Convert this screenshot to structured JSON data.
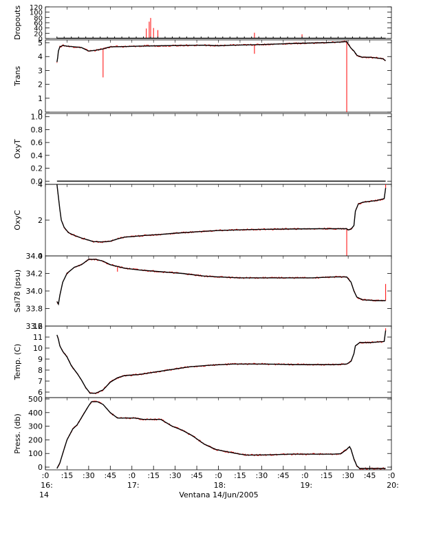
{
  "chart_data": {
    "type": "line",
    "xlabel": "Ventana 14/Jun/2005",
    "x_range": [
      "16:00",
      "20:00"
    ],
    "x_ticks": [
      {
        "t": 0,
        "label": ":0"
      },
      {
        "t": 15,
        "label": ":15"
      },
      {
        "t": 30,
        "label": ":30"
      },
      {
        "t": 45,
        "label": ":45"
      },
      {
        "t": 60,
        "label": ":0"
      },
      {
        "t": 75,
        "label": ":15"
      },
      {
        "t": 90,
        "label": ":30"
      },
      {
        "t": 105,
        "label": ":45"
      },
      {
        "t": 120,
        "label": ":0"
      },
      {
        "t": 135,
        "label": ":15"
      },
      {
        "t": 150,
        "label": ":30"
      },
      {
        "t": 165,
        "label": ":45"
      },
      {
        "t": 180,
        "label": ":0"
      },
      {
        "t": 195,
        "label": ":15"
      },
      {
        "t": 210,
        "label": ":30"
      },
      {
        "t": 225,
        "label": ":45"
      },
      {
        "t": 240,
        "label": ":0"
      }
    ],
    "hour_labels": [
      {
        "t": 0,
        "label": "16:"
      },
      {
        "t": 60,
        "label": "17:"
      },
      {
        "t": 120,
        "label": "18:"
      },
      {
        "t": 180,
        "label": "19:"
      },
      {
        "t": 240,
        "label": "20:"
      }
    ],
    "day_label": "14",
    "series_colors": {
      "raw": "#ff0000",
      "smoothed": "#000000"
    },
    "panels": [
      {
        "id": "dropouts",
        "ylabel": "Dropouts",
        "ylim": [
          0,
          120
        ],
        "yticks": [
          0,
          20,
          40,
          60,
          80,
          100,
          120
        ],
        "baseline": 1,
        "points": [
          [
            8,
            1
          ],
          [
            236,
            1
          ]
        ],
        "spikes": [
          [
            70,
            38
          ],
          [
            72,
            64
          ],
          [
            73,
            78
          ],
          [
            75,
            40
          ],
          [
            78,
            32
          ],
          [
            145,
            22
          ],
          [
            178,
            16
          ]
        ]
      },
      {
        "id": "trans",
        "ylabel": "Trans",
        "ylim": [
          0,
          5.2
        ],
        "yticks": [
          0,
          1,
          2,
          3,
          4,
          5
        ],
        "points": [
          [
            8,
            3.6
          ],
          [
            8.5,
            3.9
          ],
          [
            9,
            4.4
          ],
          [
            10,
            4.7
          ],
          [
            12,
            4.8
          ],
          [
            15,
            4.75
          ],
          [
            20,
            4.7
          ],
          [
            25,
            4.65
          ],
          [
            30,
            4.4
          ],
          [
            35,
            4.45
          ],
          [
            40,
            4.55
          ],
          [
            45,
            4.7
          ],
          [
            55,
            4.72
          ],
          [
            65,
            4.75
          ],
          [
            80,
            4.78
          ],
          [
            95,
            4.8
          ],
          [
            110,
            4.82
          ],
          [
            120,
            4.78
          ],
          [
            130,
            4.82
          ],
          [
            145,
            4.85
          ],
          [
            160,
            4.9
          ],
          [
            175,
            4.95
          ],
          [
            195,
            5.0
          ],
          [
            205,
            5.05
          ],
          [
            209,
            5.08
          ],
          [
            210,
            4.9
          ],
          [
            212,
            4.6
          ],
          [
            214,
            4.4
          ],
          [
            216,
            4.1
          ],
          [
            218,
            4.0
          ],
          [
            220,
            3.95
          ],
          [
            225,
            3.95
          ],
          [
            230,
            3.9
          ],
          [
            234,
            3.85
          ],
          [
            236,
            3.7
          ]
        ],
        "spikes": [
          [
            40,
            2.5
          ],
          [
            209,
            0
          ],
          [
            145,
            4.2
          ]
        ]
      },
      {
        "id": "oxyt",
        "ylabel": "OxyT",
        "ylim": [
          -0.05,
          1.05
        ],
        "yticks": [
          0.0,
          0.2,
          0.4,
          0.6,
          0.8,
          1.0
        ],
        "tick_labels": [
          "0.0",
          "0.2",
          "0.4",
          "0.6",
          "0.8",
          "1.0"
        ],
        "points": [
          [
            8,
            0.0
          ],
          [
            236,
            0.0
          ]
        ],
        "spikes": []
      },
      {
        "id": "oxyc",
        "ylabel": "OxyC",
        "ylim": [
          0,
          4
        ],
        "yticks": [
          0,
          2,
          4
        ],
        "points": [
          [
            8,
            4.0
          ],
          [
            9,
            3.3
          ],
          [
            10,
            2.6
          ],
          [
            11,
            2.0
          ],
          [
            13,
            1.6
          ],
          [
            16,
            1.3
          ],
          [
            20,
            1.15
          ],
          [
            25,
            1.0
          ],
          [
            30,
            0.88
          ],
          [
            33,
            0.8
          ],
          [
            40,
            0.78
          ],
          [
            45,
            0.82
          ],
          [
            50,
            0.95
          ],
          [
            55,
            1.05
          ],
          [
            60,
            1.08
          ],
          [
            70,
            1.15
          ],
          [
            80,
            1.2
          ],
          [
            90,
            1.27
          ],
          [
            105,
            1.35
          ],
          [
            120,
            1.42
          ],
          [
            140,
            1.47
          ],
          [
            165,
            1.5
          ],
          [
            190,
            1.52
          ],
          [
            209,
            1.52
          ],
          [
            210,
            1.45
          ],
          [
            212,
            1.5
          ],
          [
            214,
            1.7
          ],
          [
            215,
            2.5
          ],
          [
            217,
            2.9
          ],
          [
            220,
            3.0
          ],
          [
            225,
            3.05
          ],
          [
            230,
            3.1
          ],
          [
            235,
            3.2
          ],
          [
            236,
            3.8
          ]
        ],
        "spikes": [
          [
            209,
            0
          ],
          [
            236,
            4.0
          ]
        ]
      },
      {
        "id": "sal",
        "ylabel": "Sal78 (psu)",
        "ylim": [
          33.6,
          34.4
        ],
        "yticks": [
          33.6,
          33.8,
          34.0,
          34.2,
          34.4
        ],
        "tick_labels": [
          "33.6",
          "33.8",
          "34.0",
          "34.2",
          "34.4"
        ],
        "points": [
          [
            8,
            33.88
          ],
          [
            9,
            33.85
          ],
          [
            10,
            33.95
          ],
          [
            12,
            34.1
          ],
          [
            15,
            34.2
          ],
          [
            20,
            34.27
          ],
          [
            25,
            34.3
          ],
          [
            30,
            34.36
          ],
          [
            35,
            34.36
          ],
          [
            40,
            34.34
          ],
          [
            45,
            34.3
          ],
          [
            55,
            34.26
          ],
          [
            65,
            34.24
          ],
          [
            80,
            34.22
          ],
          [
            95,
            34.2
          ],
          [
            110,
            34.17
          ],
          [
            120,
            34.16
          ],
          [
            135,
            34.15
          ],
          [
            160,
            34.15
          ],
          [
            185,
            34.15
          ],
          [
            200,
            34.16
          ],
          [
            209,
            34.16
          ],
          [
            212,
            34.1
          ],
          [
            214,
            34.0
          ],
          [
            216,
            33.93
          ],
          [
            220,
            33.9
          ],
          [
            230,
            33.89
          ],
          [
            236,
            33.89
          ]
        ],
        "spikes": [
          [
            236,
            34.08
          ],
          [
            50,
            34.22
          ]
        ]
      },
      {
        "id": "temp",
        "ylabel": "Temp. (C)",
        "ylim": [
          5.5,
          12
        ],
        "yticks": [
          6,
          7,
          8,
          9,
          10,
          11,
          12
        ],
        "points": [
          [
            8,
            11.2
          ],
          [
            9,
            10.8
          ],
          [
            10,
            10.2
          ],
          [
            12,
            9.7
          ],
          [
            15,
            9.2
          ],
          [
            18,
            8.4
          ],
          [
            22,
            7.7
          ],
          [
            25,
            7.1
          ],
          [
            28,
            6.4
          ],
          [
            31,
            5.9
          ],
          [
            35,
            5.9
          ],
          [
            40,
            6.2
          ],
          [
            45,
            6.9
          ],
          [
            50,
            7.3
          ],
          [
            55,
            7.5
          ],
          [
            65,
            7.6
          ],
          [
            75,
            7.8
          ],
          [
            85,
            8.0
          ],
          [
            100,
            8.3
          ],
          [
            115,
            8.45
          ],
          [
            130,
            8.55
          ],
          [
            150,
            8.55
          ],
          [
            175,
            8.5
          ],
          [
            200,
            8.5
          ],
          [
            209,
            8.55
          ],
          [
            212,
            8.8
          ],
          [
            214,
            9.5
          ],
          [
            215,
            10.2
          ],
          [
            218,
            10.5
          ],
          [
            225,
            10.5
          ],
          [
            235,
            10.6
          ],
          [
            236,
            11.6
          ]
        ],
        "spikes": [
          [
            236,
            11.8
          ]
        ]
      },
      {
        "id": "press",
        "ylabel": "Press. (db)",
        "ylim": [
          -20,
          510
        ],
        "yticks": [
          0,
          100,
          200,
          300,
          400,
          500
        ],
        "points": [
          [
            8,
            -10
          ],
          [
            10,
            30
          ],
          [
            12,
            100
          ],
          [
            15,
            200
          ],
          [
            19,
            280
          ],
          [
            22,
            310
          ],
          [
            26,
            380
          ],
          [
            30,
            450
          ],
          [
            32,
            480
          ],
          [
            36,
            480
          ],
          [
            40,
            460
          ],
          [
            45,
            400
          ],
          [
            50,
            360
          ],
          [
            62,
            360
          ],
          [
            68,
            350
          ],
          [
            80,
            350
          ],
          [
            88,
            300
          ],
          [
            95,
            270
          ],
          [
            102,
            230
          ],
          [
            110,
            170
          ],
          [
            118,
            130
          ],
          [
            125,
            115
          ],
          [
            135,
            95
          ],
          [
            140,
            88
          ],
          [
            155,
            90
          ],
          [
            170,
            95
          ],
          [
            185,
            95
          ],
          [
            200,
            95
          ],
          [
            205,
            98
          ],
          [
            209,
            130
          ],
          [
            211,
            150
          ],
          [
            212,
            130
          ],
          [
            214,
            60
          ],
          [
            216,
            10
          ],
          [
            218,
            -10
          ],
          [
            236,
            -10
          ]
        ],
        "spikes": []
      }
    ]
  }
}
